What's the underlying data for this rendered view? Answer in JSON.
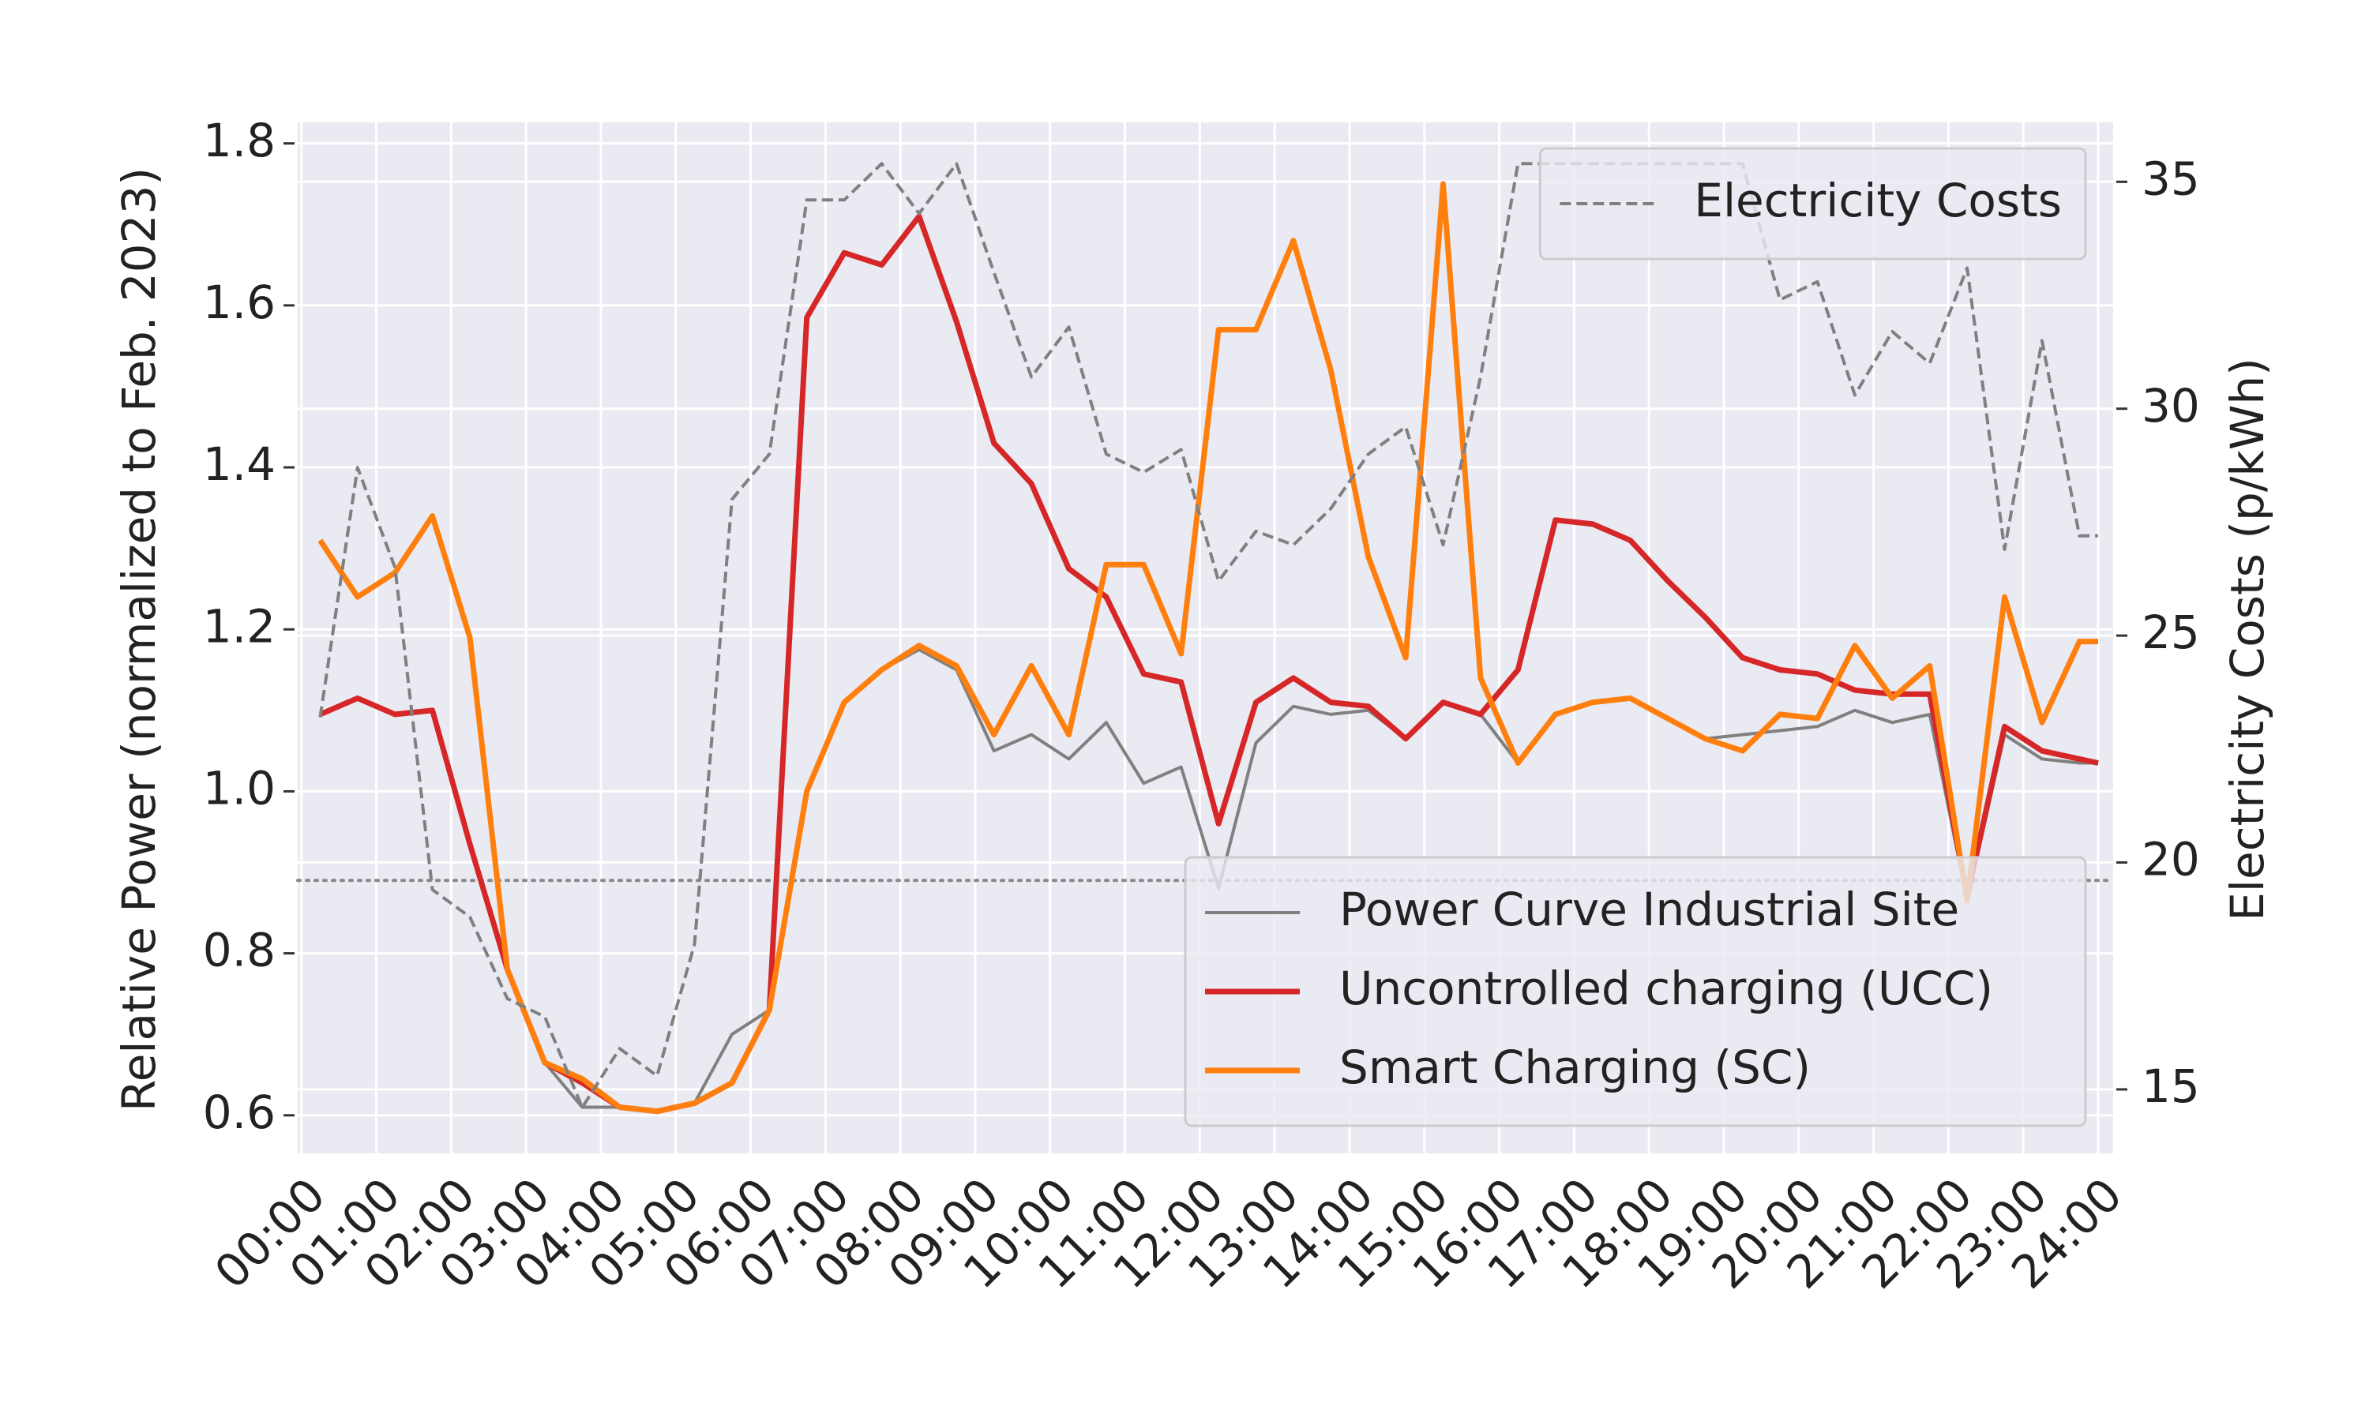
{
  "chart_data": {
    "type": "line",
    "ylabel": "Relative Power (normalized to Feb. 2023)",
    "y2label": "Electricity Costs (p/kWh)",
    "x": [
      0.25,
      0.75,
      1.25,
      1.75,
      2.25,
      2.75,
      3.25,
      3.75,
      4.25,
      4.75,
      5.25,
      5.75,
      6.25,
      6.75,
      7.25,
      7.75,
      8.25,
      8.75,
      9.25,
      9.75,
      10.25,
      10.75,
      11.25,
      11.75,
      12.25,
      12.75,
      13.25,
      13.75,
      14.25,
      14.75,
      15.25,
      15.75,
      16.25,
      16.75,
      17.25,
      17.75,
      18.25,
      18.75,
      19.25,
      19.75,
      20.25,
      20.75,
      21.25,
      21.75,
      22.25,
      22.75,
      23.25,
      23.75,
      24
    ],
    "xlim": [
      -0.05,
      24.2
    ],
    "xticks": [
      {
        "value": 0,
        "label": "00:00"
      },
      {
        "value": 1,
        "label": "01:00"
      },
      {
        "value": 2,
        "label": "02:00"
      },
      {
        "value": 3,
        "label": "03:00"
      },
      {
        "value": 4,
        "label": "04:00"
      },
      {
        "value": 5,
        "label": "05:00"
      },
      {
        "value": 6,
        "label": "06:00"
      },
      {
        "value": 7,
        "label": "07:00"
      },
      {
        "value": 8,
        "label": "08:00"
      },
      {
        "value": 9,
        "label": "09:00"
      },
      {
        "value": 10,
        "label": "10:00"
      },
      {
        "value": 11,
        "label": "11:00"
      },
      {
        "value": 12,
        "label": "12:00"
      },
      {
        "value": 13,
        "label": "13:00"
      },
      {
        "value": 14,
        "label": "14:00"
      },
      {
        "value": 15,
        "label": "15:00"
      },
      {
        "value": 16,
        "label": "16:00"
      },
      {
        "value": 17,
        "label": "17:00"
      },
      {
        "value": 18,
        "label": "18:00"
      },
      {
        "value": 19,
        "label": "19:00"
      },
      {
        "value": 20,
        "label": "20:00"
      },
      {
        "value": 21,
        "label": "21:00"
      },
      {
        "value": 22,
        "label": "22:00"
      },
      {
        "value": 23,
        "label": "23:00"
      },
      {
        "value": 24,
        "label": "24:00"
      }
    ],
    "ylim": [
      0.553,
      1.826
    ],
    "yticks": [
      0.6,
      0.8,
      {
        "value": 1,
        "label": "1.0"
      },
      1.2,
      1.4,
      1.6,
      1.8
    ],
    "y2lim": [
      13.59,
      36.31
    ],
    "y2ticks": [
      15,
      20,
      25,
      30,
      35
    ],
    "hline": 0.89,
    "grid": true,
    "legend_loc": "lower right",
    "legend2_loc": "upper right",
    "series": [
      {
        "name": "Power Curve Industrial Site",
        "color": "#808080",
        "linestyle": "solid",
        "values": [
          1.095,
          1.115,
          1.095,
          1.1,
          0.935,
          0.78,
          0.665,
          0.61,
          0.61,
          0.605,
          0.615,
          0.7,
          0.73,
          1.0,
          1.11,
          1.15,
          1.175,
          1.15,
          1.05,
          1.07,
          1.04,
          1.085,
          1.01,
          1.03,
          0.88,
          1.06,
          1.105,
          1.095,
          1.1,
          1.065,
          1.11,
          1.095,
          1.035,
          1.095,
          1.11,
          1.115,
          1.09,
          1.065,
          1.07,
          1.075,
          1.08,
          1.1,
          1.085,
          1.095,
          0.865,
          1.07,
          1.04,
          1.035,
          1.035
        ]
      },
      {
        "name": "Uncontrolled charging (UCC)",
        "color": "#d62728",
        "linestyle": "solid",
        "values": [
          1.095,
          1.115,
          1.095,
          1.1,
          0.935,
          0.78,
          0.665,
          0.64,
          0.61,
          0.605,
          0.615,
          0.64,
          0.73,
          1.585,
          1.665,
          1.65,
          1.71,
          1.58,
          1.43,
          1.38,
          1.275,
          1.24,
          1.145,
          1.135,
          0.96,
          1.11,
          1.14,
          1.11,
          1.105,
          1.065,
          1.11,
          1.095,
          1.15,
          1.335,
          1.33,
          1.31,
          1.26,
          1.215,
          1.165,
          1.15,
          1.145,
          1.125,
          1.12,
          1.12,
          0.87,
          1.08,
          1.05,
          1.04,
          1.035
        ]
      },
      {
        "name": "Smart Charging (SC)",
        "color": "#ff7f0e",
        "linestyle": "solid",
        "values": [
          1.31,
          1.24,
          1.27,
          1.34,
          1.19,
          0.78,
          0.665,
          0.645,
          0.61,
          0.605,
          0.615,
          0.64,
          0.73,
          1.0,
          1.11,
          1.15,
          1.18,
          1.155,
          1.07,
          1.155,
          1.07,
          1.28,
          1.28,
          1.17,
          1.57,
          1.57,
          1.68,
          1.52,
          1.29,
          1.165,
          1.75,
          1.14,
          1.035,
          1.095,
          1.11,
          1.115,
          1.09,
          1.065,
          1.05,
          1.095,
          1.09,
          1.18,
          1.115,
          1.155,
          0.865,
          1.24,
          1.085,
          1.185,
          1.185
        ]
      },
      {
        "name": "Electricity Costs",
        "color": "#808080",
        "linestyle": "dashed",
        "axis": "y2",
        "values": [
          23.2,
          28.7,
          26.5,
          19.4,
          18.8,
          17.0,
          16.6,
          14.6,
          15.9,
          15.3,
          18.2,
          28.0,
          29.0,
          34.6,
          34.6,
          35.4,
          34.3,
          35.4,
          33.0,
          30.7,
          31.8,
          29.0,
          28.6,
          29.1,
          26.2,
          27.3,
          27.0,
          27.8,
          29.0,
          29.6,
          27.0,
          30.7,
          35.4,
          35.4,
          35.4,
          35.4,
          35.4,
          35.4,
          35.4,
          32.4,
          32.8,
          30.3,
          31.7,
          31.0,
          33.1,
          26.9,
          31.5,
          27.2,
          27.2
        ]
      }
    ]
  }
}
